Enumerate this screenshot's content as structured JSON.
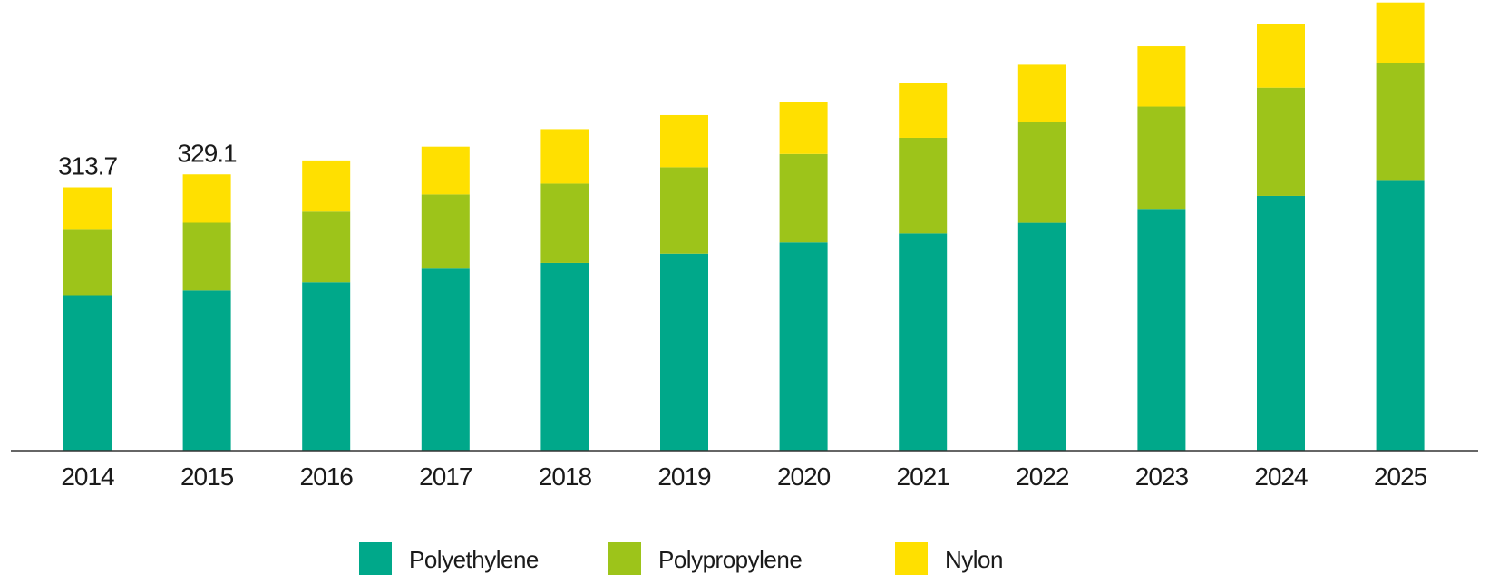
{
  "chart_data": {
    "type": "bar",
    "stacked": true,
    "categories": [
      "2014",
      "2015",
      "2016",
      "2017",
      "2018",
      "2019",
      "2020",
      "2021",
      "2022",
      "2023",
      "2024",
      "2025"
    ],
    "series": [
      {
        "name": "Polyethylene",
        "color": "#00a88a",
        "values": [
          185.2,
          190.8,
          200.6,
          216.8,
          223.6,
          234.6,
          248.1,
          258.8,
          271.5,
          287.0,
          303.5,
          321.4
        ]
      },
      {
        "name": "Polypropylene",
        "color": "#9dc41a",
        "values": [
          77.9,
          80.8,
          84.2,
          88.4,
          94.5,
          103.0,
          105.2,
          113.8,
          120.4,
          122.8,
          128.8,
          139.8
        ]
      },
      {
        "name": "Nylon",
        "color": "#ffe000",
        "values": [
          50.6,
          57.5,
          60.9,
          56.9,
          64.8,
          62.0,
          62.0,
          65.4,
          67.7,
          71.8,
          76.3,
          72.6
        ]
      }
    ],
    "data_labels": [
      {
        "category": "2014",
        "text": "313.7"
      },
      {
        "category": "2015",
        "text": "329.1"
      }
    ],
    "ylim": [
      0,
      540
    ],
    "grid": false,
    "legend_position": "bottom-center",
    "title": "",
    "xlabel": "",
    "ylabel": ""
  }
}
